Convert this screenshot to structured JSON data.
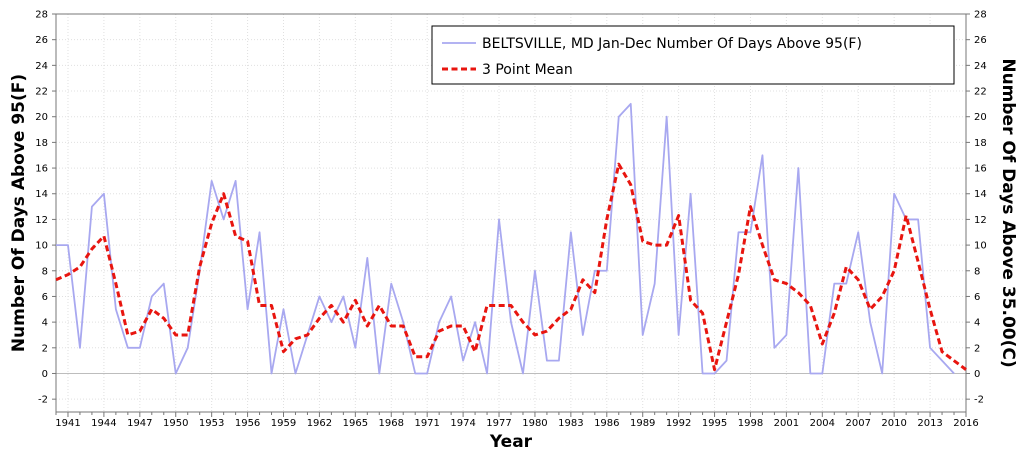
{
  "chart_data": {
    "type": "line",
    "xlabel": "Year",
    "ylabel_left": "Number Of Days Above 95(F)",
    "ylabel_right": "Number Of Days Above 35.00(C)",
    "xlim": [
      1940,
      2016
    ],
    "ylim": [
      -3,
      28
    ],
    "yticks": [
      -2,
      0,
      2,
      4,
      6,
      8,
      10,
      12,
      14,
      16,
      18,
      20,
      22,
      24,
      26,
      28
    ],
    "xticks": [
      1941,
      1944,
      1947,
      1950,
      1953,
      1956,
      1959,
      1962,
      1965,
      1968,
      1971,
      1974,
      1977,
      1980,
      1983,
      1986,
      1989,
      1992,
      1995,
      1998,
      2001,
      2004,
      2007,
      2010,
      2013,
      2016
    ],
    "grid": true,
    "legend_position": "top-right",
    "years": [
      1940,
      1941,
      1942,
      1943,
      1944,
      1945,
      1946,
      1947,
      1948,
      1949,
      1950,
      1951,
      1952,
      1953,
      1954,
      1955,
      1956,
      1957,
      1958,
      1959,
      1960,
      1961,
      1962,
      1963,
      1964,
      1965,
      1966,
      1967,
      1968,
      1969,
      1970,
      1971,
      1972,
      1973,
      1974,
      1975,
      1976,
      1977,
      1978,
      1979,
      1980,
      1981,
      1982,
      1983,
      1984,
      1985,
      1986,
      1987,
      1988,
      1989,
      1990,
      1991,
      1992,
      1993,
      1994,
      1995,
      1996,
      1997,
      1998,
      1999,
      2000,
      2001,
      2002,
      2003,
      2004,
      2005,
      2006,
      2007,
      2008,
      2009,
      2010,
      2011,
      2012,
      2013,
      2014,
      2015,
      2016
    ],
    "series": [
      {
        "name": "BELTSVILLE, MD  Jan-Dec  Number Of Days Above 95(F)",
        "color": "#a8a8f0",
        "style": "solid",
        "values": [
          10,
          10,
          2,
          13,
          14,
          5,
          2,
          2,
          6,
          7,
          0,
          2,
          8,
          15,
          12,
          15,
          5,
          11,
          0,
          5,
          0,
          3,
          6,
          4,
          6,
          2,
          9,
          0,
          7,
          4,
          0,
          0,
          4,
          6,
          1,
          4,
          0,
          12,
          4,
          0,
          8,
          1,
          1,
          11,
          3,
          8,
          8,
          20,
          21,
          3,
          7,
          20,
          3,
          14,
          0,
          0,
          1,
          11,
          11,
          17,
          2,
          3,
          16,
          0,
          0,
          7,
          7,
          11,
          4,
          0,
          14,
          12,
          12,
          2,
          1,
          0,
          null
        ]
      },
      {
        "name": "3 Point Mean",
        "color": "#e8150f",
        "style": "dashed",
        "values": [
          7.3,
          7.7,
          8.3,
          9.7,
          10.7,
          7,
          3,
          3.3,
          5,
          4.3,
          3,
          3,
          8.3,
          11.7,
          14,
          10.7,
          10.3,
          5.3,
          5.3,
          1.7,
          2.7,
          3,
          4.3,
          5.3,
          4,
          5.7,
          3.7,
          5.3,
          3.7,
          3.7,
          1.3,
          1.3,
          3.3,
          3.7,
          3.7,
          1.7,
          5.3,
          5.3,
          5.3,
          4,
          3,
          3.3,
          4.3,
          5,
          7.3,
          6.3,
          12,
          16.3,
          14.7,
          10.3,
          10,
          10,
          12.3,
          5.7,
          4.7,
          0.3,
          4,
          7.7,
          13,
          10,
          7.3,
          7,
          6.3,
          5.3,
          2.3,
          4.7,
          8.3,
          7.3,
          5,
          6,
          8,
          12.3,
          8.7,
          5,
          1.7,
          1,
          0.3
        ]
      }
    ]
  }
}
